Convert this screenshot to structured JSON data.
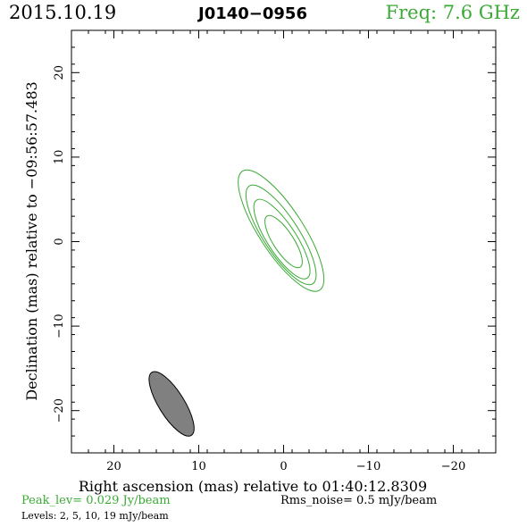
{
  "header": {
    "date": "2015.10.19",
    "source": "J0140−0956",
    "frequency": "Freq: 7.6 GHz"
  },
  "footer": {
    "peak": "Peak_lev=  0.029 Jy/beam",
    "rms": "Rms_noise=  0.5 mJy/beam",
    "levels": "Levels:  2,  5,  10,  19 mJy/beam"
  },
  "colors": {
    "contour": "#3aaa35",
    "beam_fill": "#808080",
    "axes": "#000000"
  },
  "chart_data": {
    "type": "contour",
    "xlabel": "Right ascension (mas) relative to 01:40:12.8309",
    "ylabel": "Declination (mas) relative to −09:56:57.483",
    "xlim": [
      25,
      -25
    ],
    "ylim": [
      -25,
      25
    ],
    "xticks": [
      20,
      10,
      0,
      -10,
      -20
    ],
    "yticks": [
      20,
      10,
      0,
      -10,
      -20
    ],
    "xtick_labels": [
      "20",
      "10",
      "0",
      "−10",
      "−20"
    ],
    "ytick_labels": [
      "20",
      "10",
      "0",
      "−10",
      "−20"
    ],
    "levels_mJy": [
      2,
      5,
      10,
      19
    ],
    "contours": [
      {
        "level": 2,
        "center": [
          0.3,
          1.3
        ],
        "semi_major": 8.4,
        "semi_minor": 2.6,
        "pa_deg": 33
      },
      {
        "level": 5,
        "center": [
          0.3,
          0.8
        ],
        "semi_major": 6.9,
        "semi_minor": 2.1,
        "pa_deg": 33
      },
      {
        "level": 10,
        "center": [
          0.2,
          0.3
        ],
        "semi_major": 5.5,
        "semi_minor": 1.7,
        "pa_deg": 33
      },
      {
        "level": 19,
        "center": [
          0.0,
          0.0
        ],
        "semi_major": 3.6,
        "semi_minor": 1.2,
        "pa_deg": 33
      }
    ],
    "beam": {
      "center": [
        13.2,
        -19.2
      ],
      "major": 8.8,
      "minor": 3.0,
      "pa_deg": 32
    },
    "grid": false,
    "legend": "none"
  }
}
